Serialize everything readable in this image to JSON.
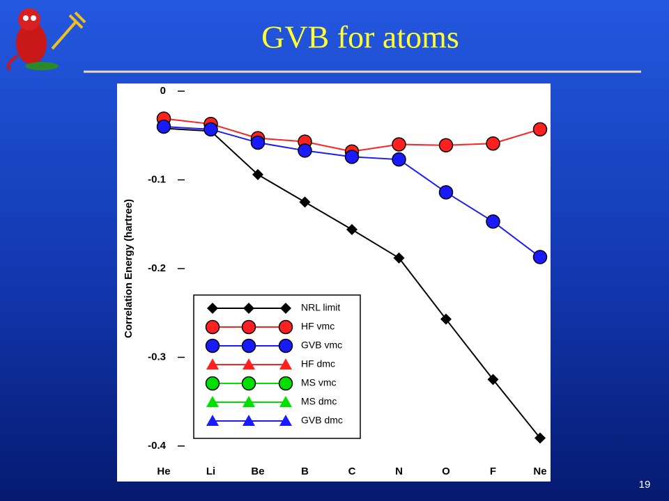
{
  "slide": {
    "title": "GVB for atoms",
    "page_number": "19"
  },
  "chart_data": {
    "type": "line",
    "ylabel": "Correlation Energy (hartree)",
    "categories": [
      "He",
      "Li",
      "Be",
      "B",
      "C",
      "N",
      "O",
      "F",
      "Ne"
    ],
    "ylim": [
      -0.4,
      0
    ],
    "yticks": [
      0,
      -0.1,
      -0.2,
      -0.3,
      -0.4
    ],
    "series": [
      {
        "name": "NRL limit",
        "color": "#000000",
        "marker": "diamond",
        "values": [
          -0.042,
          -0.045,
          -0.094,
          -0.125,
          -0.156,
          -0.188,
          -0.257,
          -0.325,
          -0.391
        ]
      },
      {
        "name": "HF vmc",
        "color": "#ff2020",
        "marker": "circle",
        "values": [
          -0.031,
          -0.037,
          -0.053,
          -0.057,
          -0.068,
          -0.06,
          -0.061,
          -0.059,
          -0.043
        ]
      },
      {
        "name": "GVB vmc",
        "color": "#1a1aff",
        "marker": "circle",
        "values": [
          -0.04,
          -0.043,
          -0.058,
          -0.067,
          -0.074,
          -0.077,
          -0.114,
          -0.147,
          -0.187
        ]
      },
      {
        "name": "HF dmc",
        "color": "#ff2020",
        "marker": "triangle",
        "values": [
          null,
          null,
          null,
          null,
          null,
          null,
          null,
          null,
          null
        ]
      },
      {
        "name": "MS vmc",
        "color": "#00e000",
        "marker": "circle",
        "values": [
          null,
          null,
          null,
          null,
          null,
          null,
          null,
          null,
          null
        ]
      },
      {
        "name": "MS dmc",
        "color": "#00e000",
        "marker": "triangle",
        "values": [
          null,
          null,
          null,
          null,
          null,
          null,
          null,
          null,
          null
        ]
      },
      {
        "name": "GVB dmc",
        "color": "#1a1aff",
        "marker": "triangle",
        "values": [
          null,
          null,
          null,
          null,
          null,
          null,
          null,
          null,
          null
        ]
      }
    ]
  }
}
